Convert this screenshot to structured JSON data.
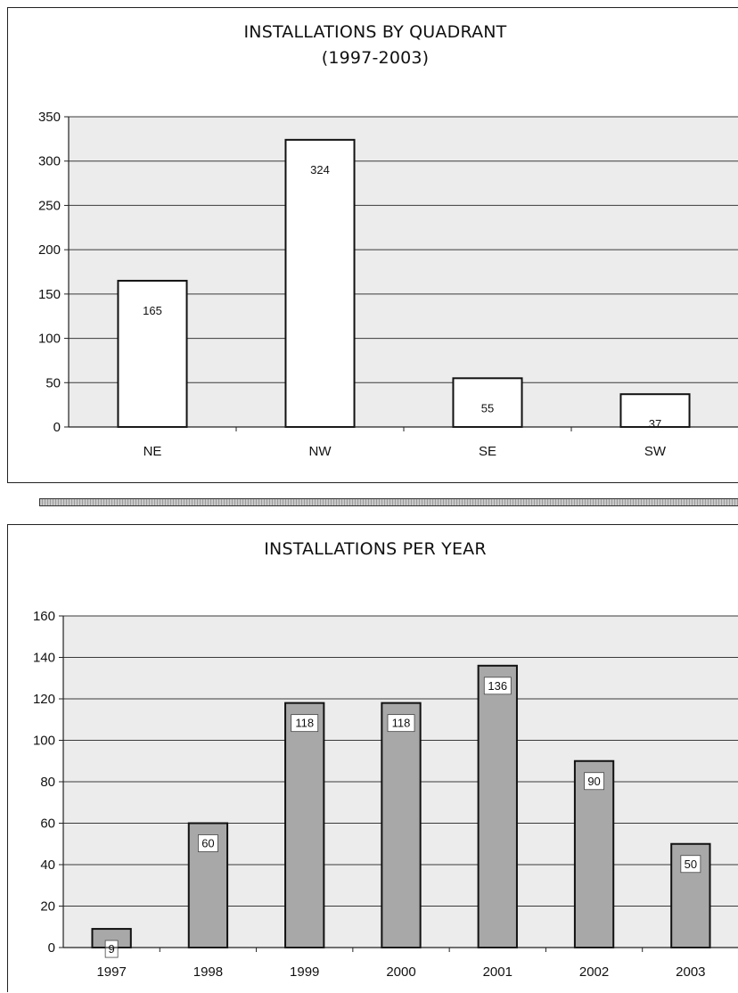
{
  "chart_data": [
    {
      "type": "bar",
      "title": "INSTALLATIONS BY QUADRANT",
      "subtitle": "(1997-2003)",
      "categories": [
        "NE",
        "NW",
        "SE",
        "SW"
      ],
      "values": [
        165,
        324,
        55,
        37
      ],
      "xlabel": "",
      "ylabel": "",
      "ylim": [
        0,
        350
      ],
      "yticks": [
        0,
        50,
        100,
        150,
        200,
        250,
        300,
        350
      ],
      "grid": true,
      "bar_color": "#ffffff",
      "label_position": "inside-top"
    },
    {
      "type": "bar",
      "title": "INSTALLATIONS PER YEAR",
      "categories": [
        "1997",
        "1998",
        "1999",
        "2000",
        "2001",
        "2002",
        "2003"
      ],
      "values": [
        9,
        60,
        118,
        118,
        136,
        90,
        50
      ],
      "xlabel": "",
      "ylabel": "",
      "ylim": [
        0,
        160
      ],
      "yticks": [
        0,
        20,
        40,
        60,
        80,
        100,
        120,
        140,
        160
      ],
      "grid": true,
      "bar_color": "#a8a8a8",
      "label_position": "inside-top-boxed"
    }
  ]
}
